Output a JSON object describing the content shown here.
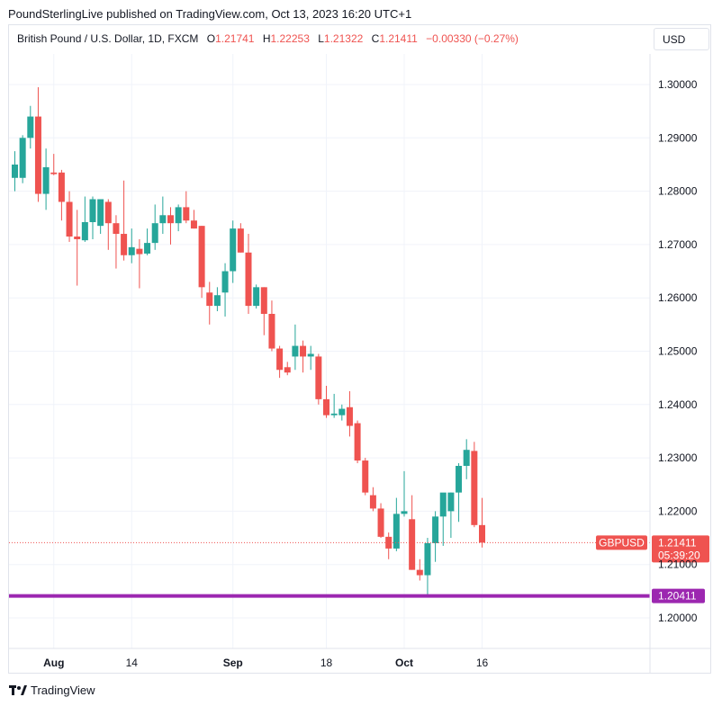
{
  "header": {
    "text": "PoundSterlingLive published on TradingView.com, Oct 13, 2023 16:20 UTC+1"
  },
  "legend": {
    "symbol": "British Pound / U.S. Dollar, 1D, FXCM",
    "o_label": "O",
    "o_value": "1.21741",
    "h_label": "H",
    "h_value": "1.22253",
    "l_label": "L",
    "l_value": "1.21322",
    "c_label": "C",
    "c_value": "1.21411",
    "change": "−0.00330 (−0.27%)"
  },
  "currency_button": "USD",
  "price_tag": {
    "symbol": "GBPUSD",
    "price": "1.21411",
    "countdown": "05:39:20"
  },
  "level_tag": {
    "price": "1.20411"
  },
  "footer": {
    "brand": "TradingView"
  },
  "colors": {
    "up": "#26a69a",
    "down": "#ef5350",
    "level": "#9c27b0",
    "text": "#131722",
    "grid": "#f0f3fa"
  },
  "chart_data": {
    "type": "candlestick",
    "y_ticks": [
      "1.30000",
      "1.29000",
      "1.28000",
      "1.27000",
      "1.26000",
      "1.25000",
      "1.24000",
      "1.23000",
      "1.22000",
      "1.21000",
      "1.20000"
    ],
    "y_tick_values": [
      1.3,
      1.29,
      1.28,
      1.27,
      1.26,
      1.25,
      1.24,
      1.23,
      1.22,
      1.21,
      1.2
    ],
    "x_ticks": [
      {
        "label": "Aug",
        "index": 5,
        "bold": true
      },
      {
        "label": "14",
        "index": 15,
        "bold": false
      },
      {
        "label": "Sep",
        "index": 28,
        "bold": true
      },
      {
        "label": "18",
        "index": 40,
        "bold": false
      },
      {
        "label": "Oct",
        "index": 50,
        "bold": true
      },
      {
        "label": "16",
        "index": 60,
        "bold": false
      }
    ],
    "last_price": 1.21411,
    "horizontal_level": 1.20411,
    "candles": [
      {
        "o": 1.2825,
        "h": 1.2875,
        "l": 1.28,
        "c": 1.285
      },
      {
        "o": 1.2825,
        "h": 1.2905,
        "l": 1.2815,
        "c": 1.29
      },
      {
        "o": 1.29,
        "h": 1.296,
        "l": 1.288,
        "c": 1.294
      },
      {
        "o": 1.294,
        "h": 1.2995,
        "l": 1.278,
        "c": 1.2795
      },
      {
        "o": 1.2795,
        "h": 1.288,
        "l": 1.2765,
        "c": 1.2845
      },
      {
        "o": 1.2835,
        "h": 1.287,
        "l": 1.283,
        "c": 1.2832
      },
      {
        "o": 1.2835,
        "h": 1.284,
        "l": 1.2745,
        "c": 1.278
      },
      {
        "o": 1.278,
        "h": 1.28,
        "l": 1.2705,
        "c": 1.2715
      },
      {
        "o": 1.2715,
        "h": 1.2765,
        "l": 1.2623,
        "c": 1.271
      },
      {
        "o": 1.2708,
        "h": 1.279,
        "l": 1.2705,
        "c": 1.2742
      },
      {
        "o": 1.2742,
        "h": 1.279,
        "l": 1.271,
        "c": 1.2785
      },
      {
        "o": 1.2735,
        "h": 1.2785,
        "l": 1.272,
        "c": 1.2785
      },
      {
        "o": 1.278,
        "h": 1.2785,
        "l": 1.269,
        "c": 1.274
      },
      {
        "o": 1.274,
        "h": 1.2755,
        "l": 1.2655,
        "c": 1.272
      },
      {
        "o": 1.272,
        "h": 1.282,
        "l": 1.267,
        "c": 1.268
      },
      {
        "o": 1.268,
        "h": 1.273,
        "l": 1.2665,
        "c": 1.2695
      },
      {
        "o": 1.2692,
        "h": 1.271,
        "l": 1.2618,
        "c": 1.2682
      },
      {
        "o": 1.2683,
        "h": 1.273,
        "l": 1.268,
        "c": 1.2703
      },
      {
        "o": 1.2703,
        "h": 1.2775,
        "l": 1.269,
        "c": 1.274
      },
      {
        "o": 1.274,
        "h": 1.279,
        "l": 1.272,
        "c": 1.2755
      },
      {
        "o": 1.2755,
        "h": 1.277,
        "l": 1.27,
        "c": 1.274
      },
      {
        "o": 1.274,
        "h": 1.2775,
        "l": 1.2725,
        "c": 1.277
      },
      {
        "o": 1.277,
        "h": 1.28,
        "l": 1.274,
        "c": 1.2745
      },
      {
        "o": 1.2745,
        "h": 1.2765,
        "l": 1.273,
        "c": 1.273
      },
      {
        "o": 1.2735,
        "h": 1.2735,
        "l": 1.26,
        "c": 1.262
      },
      {
        "o": 1.261,
        "h": 1.263,
        "l": 1.255,
        "c": 1.2585
      },
      {
        "o": 1.2585,
        "h": 1.262,
        "l": 1.2575,
        "c": 1.2605
      },
      {
        "o": 1.261,
        "h": 1.2665,
        "l": 1.2565,
        "c": 1.265
      },
      {
        "o": 1.265,
        "h": 1.2745,
        "l": 1.2628,
        "c": 1.273
      },
      {
        "o": 1.273,
        "h": 1.274,
        "l": 1.2685,
        "c": 1.2685
      },
      {
        "o": 1.2685,
        "h": 1.272,
        "l": 1.257,
        "c": 1.2585
      },
      {
        "o": 1.2585,
        "h": 1.2625,
        "l": 1.258,
        "c": 1.262
      },
      {
        "o": 1.262,
        "h": 1.262,
        "l": 1.253,
        "c": 1.257
      },
      {
        "o": 1.257,
        "h": 1.2595,
        "l": 1.25,
        "c": 1.2505
      },
      {
        "o": 1.2505,
        "h": 1.251,
        "l": 1.245,
        "c": 1.2465
      },
      {
        "o": 1.247,
        "h": 1.248,
        "l": 1.2455,
        "c": 1.246
      },
      {
        "o": 1.249,
        "h": 1.255,
        "l": 1.2465,
        "c": 1.251
      },
      {
        "o": 1.251,
        "h": 1.252,
        "l": 1.246,
        "c": 1.249
      },
      {
        "o": 1.249,
        "h": 1.251,
        "l": 1.2465,
        "c": 1.2495
      },
      {
        "o": 1.249,
        "h": 1.2495,
        "l": 1.24,
        "c": 1.241
      },
      {
        "o": 1.241,
        "h": 1.2435,
        "l": 1.2375,
        "c": 1.238
      },
      {
        "o": 1.238,
        "h": 1.242,
        "l": 1.2375,
        "c": 1.2383
      },
      {
        "o": 1.238,
        "h": 1.24,
        "l": 1.237,
        "c": 1.2392
      },
      {
        "o": 1.2395,
        "h": 1.2425,
        "l": 1.234,
        "c": 1.236
      },
      {
        "o": 1.2365,
        "h": 1.237,
        "l": 1.229,
        "c": 1.2295
      },
      {
        "o": 1.2295,
        "h": 1.23,
        "l": 1.223,
        "c": 1.2235
      },
      {
        "o": 1.223,
        "h": 1.2245,
        "l": 1.22,
        "c": 1.2205
      },
      {
        "o": 1.2205,
        "h": 1.2215,
        "l": 1.215,
        "c": 1.2152
      },
      {
        "o": 1.2152,
        "h": 1.216,
        "l": 1.211,
        "c": 1.213
      },
      {
        "o": 1.213,
        "h": 1.2225,
        "l": 1.2125,
        "c": 1.2195
      },
      {
        "o": 1.2195,
        "h": 1.2275,
        "l": 1.219,
        "c": 1.22
      },
      {
        "o": 1.2185,
        "h": 1.223,
        "l": 1.209,
        "c": 1.209
      },
      {
        "o": 1.209,
        "h": 1.211,
        "l": 1.207,
        "c": 1.208
      },
      {
        "o": 1.208,
        "h": 1.215,
        "l": 1.204,
        "c": 1.214
      },
      {
        "o": 1.214,
        "h": 1.22,
        "l": 1.2105,
        "c": 1.219
      },
      {
        "o": 1.219,
        "h": 1.223,
        "l": 1.2135,
        "c": 1.2235
      },
      {
        "o": 1.22,
        "h": 1.2235,
        "l": 1.215,
        "c": 1.2235
      },
      {
        "o": 1.2235,
        "h": 1.229,
        "l": 1.218,
        "c": 1.2285
      },
      {
        "o": 1.2285,
        "h": 1.2335,
        "l": 1.226,
        "c": 1.2315
      },
      {
        "o": 1.2313,
        "h": 1.233,
        "l": 1.217,
        "c": 1.2174
      },
      {
        "o": 1.2174,
        "h": 1.2225,
        "l": 1.2132,
        "c": 1.2141
      }
    ]
  }
}
